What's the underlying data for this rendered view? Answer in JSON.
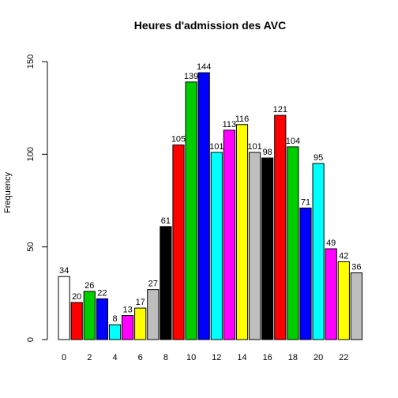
{
  "chart_data": {
    "type": "bar",
    "title": "Heures d'admission des AVC",
    "xlabel": "",
    "ylabel": "Frequency",
    "ylim": [
      0,
      150
    ],
    "yticks": [
      0,
      50,
      100,
      150
    ],
    "xticks": [
      "0",
      "2",
      "4",
      "6",
      "8",
      "10",
      "12",
      "14",
      "16",
      "18",
      "20",
      "22"
    ],
    "categories": [
      "0",
      "1",
      "2",
      "3",
      "4",
      "5",
      "6",
      "7",
      "8",
      "9",
      "10",
      "11",
      "12",
      "13",
      "14",
      "15",
      "16",
      "17",
      "18",
      "19",
      "20",
      "21",
      "22",
      "23"
    ],
    "values": [
      34,
      20,
      26,
      22,
      8,
      13,
      17,
      27,
      61,
      105,
      139,
      144,
      101,
      113,
      116,
      101,
      98,
      121,
      104,
      71,
      95,
      49,
      42,
      36
    ],
    "colors": [
      "#ffffff",
      "#ff0000",
      "#00cd00",
      "#0000ff",
      "#00ffff",
      "#ff00ff",
      "#ffff00",
      "#bebebe",
      "#000000",
      "#ff0000",
      "#00cd00",
      "#0000ff",
      "#00ffff",
      "#ff00ff",
      "#ffff00",
      "#bebebe",
      "#000000",
      "#ff0000",
      "#00cd00",
      "#0000ff",
      "#00ffff",
      "#ff00ff",
      "#ffff00",
      "#bebebe"
    ],
    "grid": false,
    "legend": "none"
  }
}
